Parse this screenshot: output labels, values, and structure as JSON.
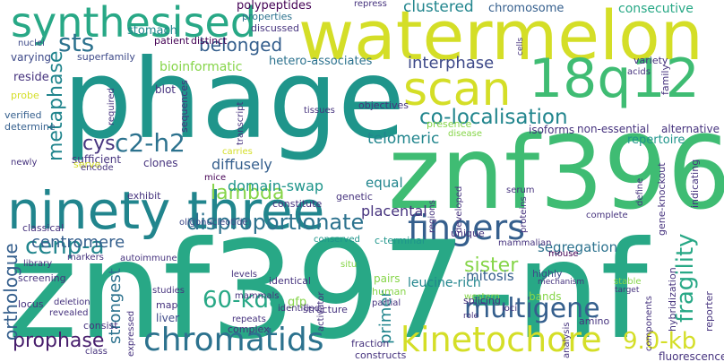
{
  "words": {
    "znf397_nf": "znf397-nf",
    "phage": "phage",
    "znf396": "znf396",
    "watermelon": "watermelon",
    "ninety_three": "ninety three",
    "synthesised": "synthesised",
    "scan": "scan",
    "w18q12": "18q12",
    "chromatids": "chromatids",
    "kinetochore": "kinetochore",
    "fingers": "fingers",
    "cenp_a": "cenp-a",
    "c2_h2": "c2-h2",
    "disproportionate": "disproportionate",
    "co_localisation": "co-localisation",
    "sts": "sts",
    "multigene": "multigene",
    "sister": "sister",
    "prophase": "prophase",
    "centromere": "centromere",
    "lambda": "lambda",
    "belonged": "belonged",
    "interphase": "interphase",
    "clustered": "clustered",
    "telomeric": "telomeric",
    "metaphase": "metaphase",
    "orthologue": "orthologue",
    "kda60": "60-kda",
    "kb90": "9.0-kb",
    "fragility": "fragility",
    "cys": "cys",
    "diffusely": "diffusely",
    "domain_swap": "domain-swap",
    "strongest": "strongest",
    "primer": "primer",
    "segregation": "segregation",
    "mitosis": "mitosis",
    "placental": "placental",
    "equal": "equal",
    "leucine_rich": "leucine-rich",
    "repertoire": "repertoire",
    "chromosome": "chromosome",
    "consecutive": "consecutive",
    "hetero_associates": "hetero-associates",
    "bioinformatic": "bioinformatic",
    "polypeptides": "polypeptides",
    "properties": "properties",
    "discussed": "discussed",
    "distinct": "distinct",
    "patient": "patient",
    "stomach": "stomach",
    "superfamily": "superfamily",
    "nuclei": "nuclei",
    "varying": "varying",
    "reside": "reside",
    "probe": "probe",
    "verified": "verified",
    "determine": "determine",
    "newly": "newly",
    "classical": "classical",
    "sufficient": "sufficient",
    "library": "library",
    "screening": "screening",
    "locus": "locus",
    "deletion": "deletion",
    "revealed": "revealed",
    "consist": "consist",
    "class": "class",
    "required": "required",
    "sequences": "sequences",
    "blot": "blot",
    "transcript": "transcript",
    "tissues": "tissues",
    "objectives": "objectives",
    "presence": "presence",
    "disease": "disease",
    "isoforms": "isoforms",
    "non_essential": "non-essential",
    "alternative": "alternative",
    "variety": "variety",
    "family": "family",
    "cells": "cells",
    "acids": "acids",
    "repress": "repress",
    "serve": "serve",
    "encode": "encode",
    "clones": "clones",
    "carries": "carries",
    "mice": "mice",
    "exhibit": "exhibit",
    "constitute": "constitute",
    "genetic": "genetic",
    "regions": "regions",
    "developed": "developed",
    "proteins": "proteins",
    "serum": "serum",
    "define": "define",
    "gene_knockout": "gene-knockout",
    "indicating": "indicating",
    "complete": "complete",
    "unique": "unique",
    "mammalian": "mammalian",
    "conserved": "conserved",
    "c_terminal": "c-terminal",
    "mouse": "mouse",
    "highly": "highly",
    "bands": "bands",
    "mechanism": "mechanism",
    "markers": "markers",
    "autoimmune": "autoimmune",
    "oligonucleotide": "oligonucleotide",
    "levels": "levels",
    "identical": "identical",
    "mammals": "mammals",
    "gfp": "gfp",
    "map": "map",
    "liver": "liver",
    "repeats": "repeats",
    "expressed": "expressed",
    "studies": "studies",
    "identified": "identified",
    "activator": "activator",
    "situ": "situ",
    "pairs": "pairs",
    "human": "human",
    "partial": "partial",
    "western": "western",
    "role": "role",
    "splicing": "splicing",
    "loci": "loci",
    "analysis": "analysis",
    "stable": "stable",
    "target": "target",
    "amino": "amino",
    "components": "components",
    "hybridization": "hybridization",
    "reporter": "reporter",
    "fluorescence": "fluorescence",
    "structure": "structure",
    "complex": "complex",
    "fraction": "fraction",
    "constructs": "constructs"
  }
}
